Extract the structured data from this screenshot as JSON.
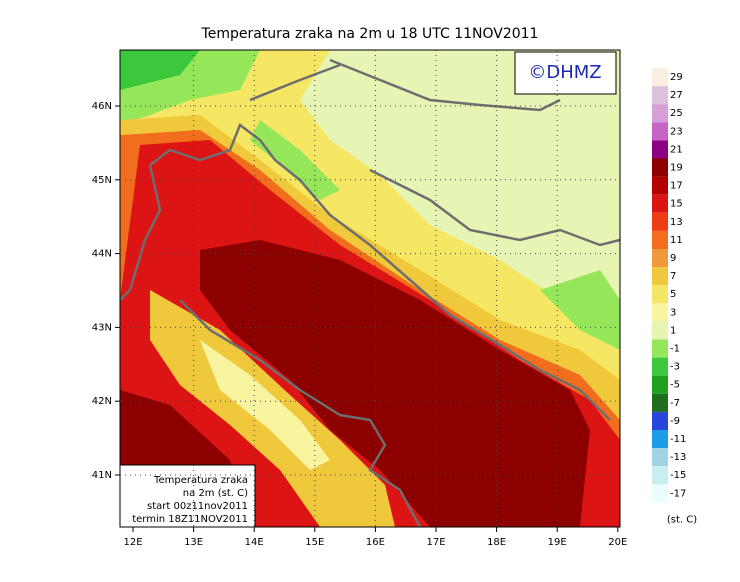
{
  "title": "Temperatura zraka na 2m u 18 UTC 11NOV2011",
  "logo": "©DHMZ",
  "info_box": [
    "Temperatura zraka",
    "na 2m (st. C)",
    "start 00z11nov2011",
    "termin 18Z11NOV2011"
  ],
  "x_labels": [
    "12E",
    "13E",
    "14E",
    "15E",
    "16E",
    "17E",
    "18E",
    "19E",
    "20E"
  ],
  "y_labels": [
    "46N",
    "45N",
    "44N",
    "43N",
    "42N",
    "41N"
  ],
  "colorbar": {
    "labels": [
      29,
      27,
      25,
      23,
      21,
      19,
      17,
      15,
      13,
      11,
      9,
      7,
      5,
      3,
      1,
      -1,
      -3,
      -5,
      -7,
      -9,
      -11,
      -13,
      -15,
      -17
    ],
    "colors": [
      "#fbeee0",
      "#dcc0dc",
      "#d8a0d8",
      "#c864c8",
      "#8c0082",
      "#8c0000",
      "#b40000",
      "#dc1414",
      "#f03c14",
      "#f06e1e",
      "#f09a3c",
      "#f0c83c",
      "#f5e664",
      "#f8f4a0",
      "#e6f5b4",
      "#96e65a",
      "#3cc83c",
      "#1ea01e",
      "#1e6e1e",
      "#2846dc",
      "#1e9be6",
      "#a0d4e4",
      "#c8eef0",
      "#eafffd"
    ],
    "unit": "(st. C)"
  }
}
